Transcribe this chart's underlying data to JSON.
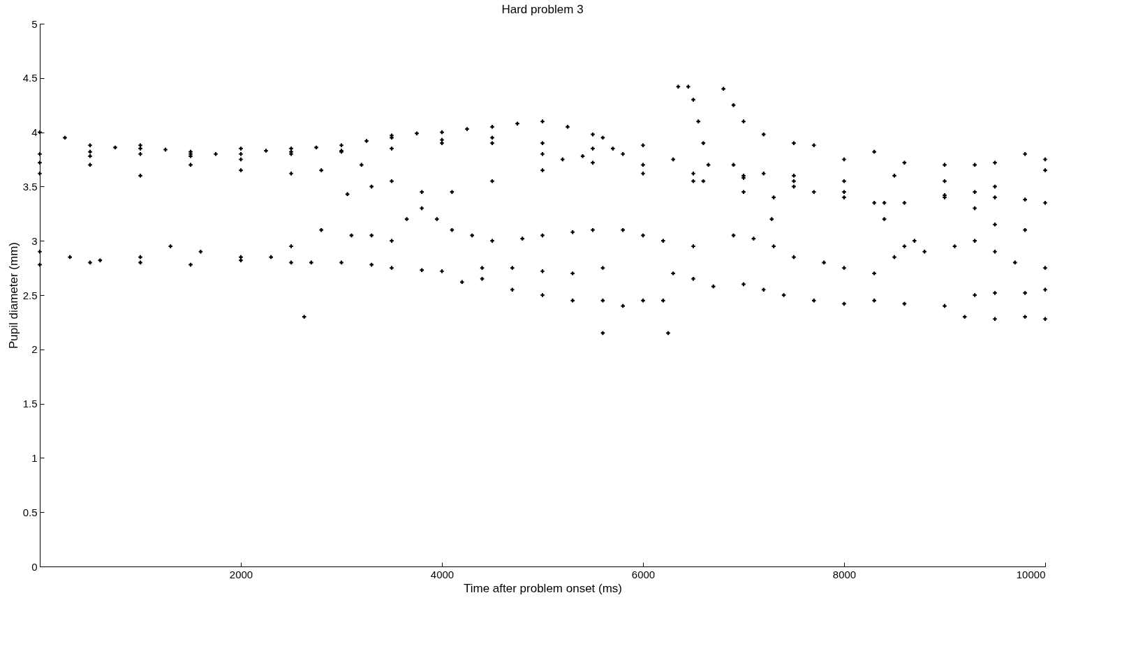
{
  "chart_data": {
    "type": "scatter",
    "title": "Hard problem 3",
    "xlabel": "Time after problem onset (ms)",
    "ylabel": "Pupil diameter (mm)",
    "xlim": [
      0,
      10000
    ],
    "ylim": [
      0,
      5
    ],
    "xticks": [
      2000,
      4000,
      6000,
      8000,
      10000
    ],
    "yticks": [
      0,
      0.5,
      1,
      1.5,
      2,
      2.5,
      3,
      3.5,
      4,
      4.5,
      5
    ],
    "grid": false,
    "marker": "cross",
    "series": [
      {
        "color": "#000000",
        "x": [
          0,
          250,
          500,
          750,
          1000,
          1250,
          1500,
          1750,
          2000,
          2250,
          2500,
          2750,
          3000,
          3250,
          3500,
          3750,
          4000,
          4250,
          4500,
          4750,
          5000,
          5250,
          5500,
          5600
        ],
        "values": [
          4.0,
          3.95,
          3.88,
          3.86,
          3.85,
          3.84,
          3.82,
          3.8,
          3.8,
          3.83,
          3.85,
          3.86,
          3.88,
          3.92,
          3.97,
          3.99,
          4.0,
          4.03,
          4.05,
          4.08,
          4.1,
          4.05,
          3.98,
          3.95
        ]
      },
      {
        "color": "#000000",
        "x": [
          0,
          500,
          1000,
          1500,
          2000,
          2500,
          3000,
          3500,
          4000,
          4500,
          5000,
          5500,
          5800,
          6000,
          6500,
          7000,
          7500,
          8000,
          8400
        ],
        "values": [
          3.8,
          3.82,
          3.8,
          3.8,
          3.75,
          3.82,
          3.83,
          3.95,
          3.93,
          3.95,
          3.9,
          3.85,
          3.8,
          3.7,
          3.62,
          3.6,
          3.5,
          3.45,
          3.35
        ]
      },
      {
        "color": "#000000",
        "x": [
          0,
          500,
          1000,
          1500,
          2000,
          2500,
          3000,
          3500,
          4000,
          4500,
          5000,
          5500,
          6000,
          6500,
          7000,
          7500,
          8000,
          8500,
          9000,
          9500,
          10000
        ],
        "values": [
          3.72,
          3.78,
          3.88,
          3.78,
          3.85,
          3.8,
          3.82,
          3.85,
          3.9,
          3.9,
          3.8,
          3.72,
          3.62,
          3.55,
          3.58,
          3.6,
          3.55,
          3.6,
          3.55,
          3.5,
          3.65
        ]
      },
      {
        "color": "#000000",
        "x": [
          0,
          500,
          1000,
          1500,
          2000,
          2500,
          2800,
          3200
        ],
        "values": [
          3.62,
          3.7,
          3.6,
          3.7,
          3.65,
          3.62,
          3.65,
          3.7
        ]
      },
      {
        "color": "#000000",
        "x": [
          3300,
          3500,
          3800,
          4100,
          4500,
          5000,
          5200,
          5400,
          5700,
          6000,
          6300,
          6600,
          7000,
          7300
        ],
        "values": [
          3.5,
          3.55,
          3.45,
          3.45,
          3.55,
          3.65,
          3.75,
          3.78,
          3.85,
          3.88,
          3.75,
          3.55,
          3.45,
          3.4
        ]
      },
      {
        "color": "#000000",
        "x": [
          6350,
          6450,
          6500,
          6550,
          6600,
          6650,
          6900,
          7200,
          7500,
          7700,
          8000,
          8300,
          8600,
          9000,
          9300,
          9500,
          9800,
          10000
        ],
        "values": [
          4.42,
          4.42,
          4.3,
          4.1,
          3.9,
          3.7,
          3.7,
          3.62,
          3.55,
          3.45,
          3.4,
          3.35,
          3.35,
          3.42,
          3.45,
          3.4,
          3.38,
          3.35
        ]
      },
      {
        "color": "#000000",
        "x": [
          6800,
          6900,
          7000,
          7200,
          7500,
          7700,
          8000,
          8300,
          8600,
          9000,
          9300,
          9500,
          9800,
          10000
        ],
        "values": [
          4.4,
          4.25,
          4.1,
          3.98,
          3.9,
          3.88,
          3.75,
          3.82,
          3.72,
          3.7,
          3.7,
          3.72,
          3.8,
          3.75
        ]
      },
      {
        "color": "#000000",
        "x": [
          9000,
          9300,
          9500,
          9800
        ],
        "values": [
          3.4,
          3.3,
          3.15,
          3.1
        ]
      },
      {
        "color": "#000000",
        "x": [
          0,
          300,
          600,
          1000,
          1300,
          1600,
          2000,
          2300,
          2500,
          2800,
          3100,
          3300,
          3500,
          3650,
          3800,
          3950,
          4100,
          4300,
          4500,
          4800,
          5000,
          5300,
          5500,
          5800,
          6000,
          6200,
          6500
        ],
        "values": [
          2.9,
          2.85,
          2.82,
          2.85,
          2.95,
          2.9,
          2.85,
          2.85,
          2.95,
          3.1,
          3.05,
          3.05,
          3.0,
          3.2,
          3.3,
          3.2,
          3.1,
          3.05,
          3.0,
          3.02,
          3.05,
          3.08,
          3.1,
          3.1,
          3.05,
          3.0,
          2.95
        ]
      },
      {
        "color": "#000000",
        "x": [
          6900,
          7100,
          7300,
          7500,
          7800,
          8000,
          8300,
          8500,
          8600,
          8700,
          8800,
          9100,
          9300,
          9500,
          9700,
          10000
        ],
        "values": [
          3.05,
          3.02,
          2.95,
          2.85,
          2.8,
          2.75,
          2.7,
          2.85,
          2.95,
          3.0,
          2.9,
          2.95,
          3.0,
          2.9,
          2.8,
          2.75
        ]
      },
      {
        "color": "#000000",
        "x": [
          0,
          500,
          1000,
          1500,
          2000,
          2500,
          2700,
          3000,
          3300,
          3500,
          3800,
          4000,
          4200,
          4400,
          4700,
          5000,
          5300,
          5600
        ],
        "values": [
          2.78,
          2.8,
          2.8,
          2.78,
          2.82,
          2.8,
          2.8,
          2.8,
          2.78,
          2.75,
          2.73,
          2.72,
          2.62,
          2.75,
          2.75,
          2.72,
          2.7,
          2.75
        ]
      },
      {
        "color": "#000000",
        "x": [
          4400,
          4700,
          5000,
          5300,
          5600,
          5800,
          6000,
          6200,
          6300,
          6500,
          6700,
          7000,
          7200,
          7400,
          7700,
          8000,
          8300,
          8600,
          9000,
          9200,
          9500,
          9800,
          10000
        ],
        "values": [
          2.65,
          2.55,
          2.5,
          2.45,
          2.45,
          2.4,
          2.45,
          2.45,
          2.7,
          2.65,
          2.58,
          2.6,
          2.55,
          2.5,
          2.45,
          2.42,
          2.45,
          2.42,
          2.4,
          2.3,
          2.28,
          2.3,
          2.28
        ]
      },
      {
        "color": "#000000",
        "x": [
          9300,
          9500,
          9800,
          10000
        ],
        "values": [
          2.5,
          2.52,
          2.52,
          2.55
        ]
      },
      {
        "color": "#000000",
        "x": [
          2630,
          3060,
          5600,
          6250,
          7280,
          8400
        ],
        "values": [
          2.3,
          3.43,
          2.15,
          2.15,
          3.2,
          3.2
        ]
      }
    ]
  }
}
